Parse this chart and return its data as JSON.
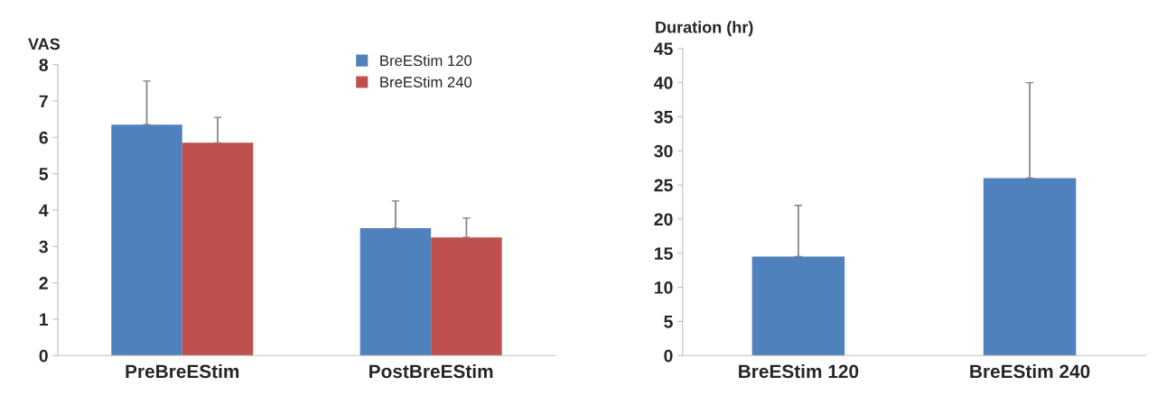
{
  "chart_data": [
    {
      "type": "bar",
      "ylabel": "VAS",
      "categories": [
        "PreBreEStim",
        "PostBreEStim"
      ],
      "series": [
        {
          "name": "BreEStim 120",
          "color": "#4f81bd",
          "values": [
            6.35,
            3.5
          ],
          "errors": [
            [
              6.35,
              7.55
            ],
            [
              3.5,
              4.25
            ]
          ]
        },
        {
          "name": "BreEStim 240",
          "color": "#c0504d",
          "values": [
            5.85,
            3.25
          ],
          "errors": [
            [
              5.85,
              6.55
            ],
            [
              3.25,
              3.78
            ]
          ]
        }
      ],
      "ylim": [
        0,
        8
      ],
      "yticks": [
        0,
        1,
        2,
        3,
        4,
        5,
        6,
        7,
        8
      ],
      "grid": false,
      "legend": "top right"
    },
    {
      "type": "bar",
      "ylabel": "Duration (hr)",
      "categories": [
        "BreEStim 120",
        "BreEStim 240"
      ],
      "series": [
        {
          "color": "#4f81bd",
          "values": [
            14.5,
            26
          ],
          "errors": [
            [
              14.5,
              22
            ],
            [
              26,
              40
            ]
          ]
        }
      ],
      "ylim": [
        0,
        45
      ],
      "yticks": [
        0,
        5,
        10,
        15,
        20,
        25,
        30,
        35,
        40,
        45
      ],
      "grid": false,
      "legend": false
    }
  ]
}
